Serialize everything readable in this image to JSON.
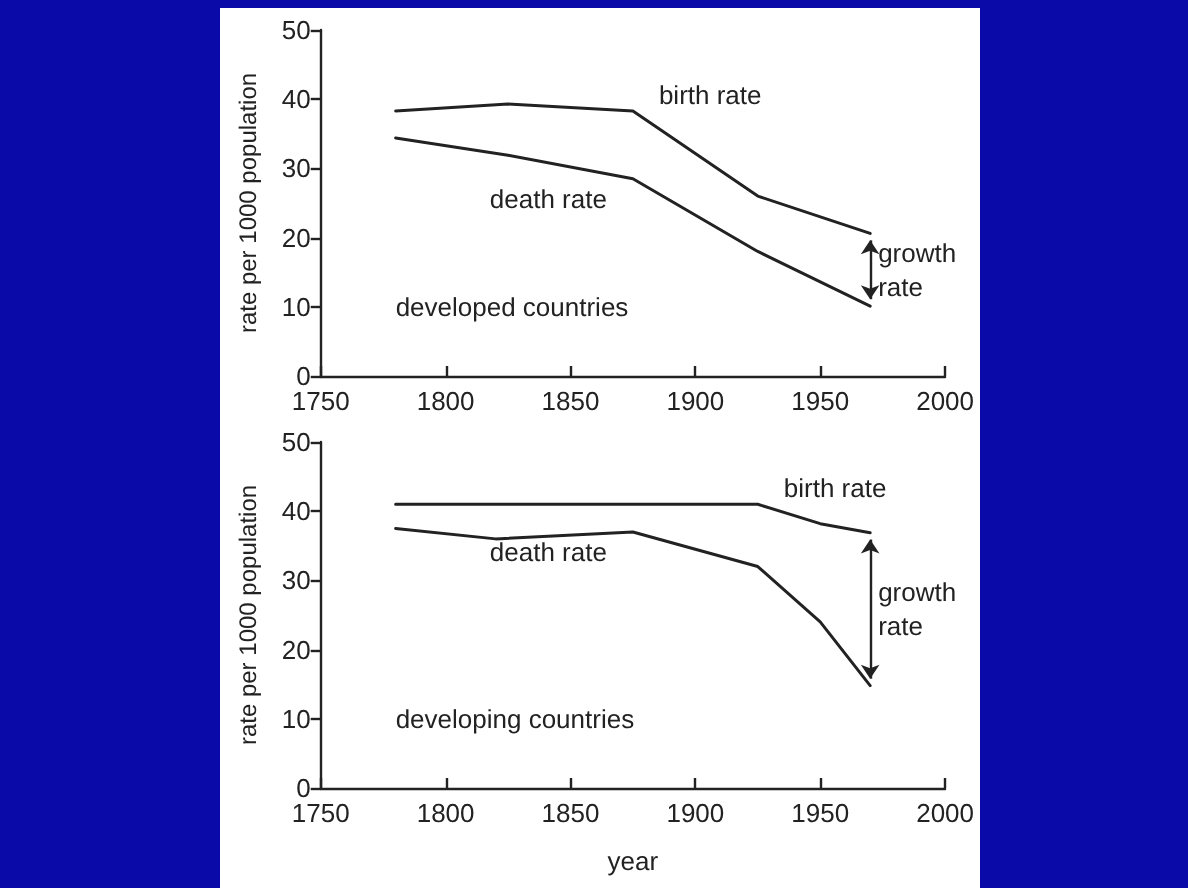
{
  "chart_data": [
    {
      "type": "line",
      "ylabel": "rate per 1000 population",
      "x": [
        1780,
        1825,
        1875,
        1925,
        1970
      ],
      "series": [
        {
          "name": "birth rate",
          "color": "#222222",
          "values": [
            38.3,
            39.3,
            38.3,
            26,
            20.6
          ]
        },
        {
          "name": "death rate",
          "color": "#222222",
          "values": [
            34.4,
            31.9,
            28.5,
            18,
            10.1
          ]
        }
      ],
      "xlim": [
        1750,
        2000
      ],
      "xticks": [
        1750,
        1800,
        1850,
        1900,
        1950,
        2000
      ],
      "ylim": [
        0,
        50
      ],
      "yticks": [
        0,
        10,
        20,
        30,
        40,
        50
      ],
      "annotations": [
        "developed countries",
        "growth rate"
      ],
      "grid": false,
      "legend": false,
      "marker": "none"
    },
    {
      "type": "line",
      "ylabel": "rate per 1000 population",
      "xlabel": "year",
      "x": [
        1780,
        1820,
        1875,
        1925,
        1950,
        1970
      ],
      "series": [
        {
          "name": "birth rate",
          "color": "#222222",
          "values": [
            41,
            41,
            41,
            41,
            38.2,
            36.9
          ]
        },
        {
          "name": "death rate",
          "color": "#222222",
          "values": [
            37.5,
            36,
            37,
            32,
            24,
            14.8
          ]
        }
      ],
      "xlim": [
        1750,
        2000
      ],
      "xticks": [
        1750,
        1800,
        1850,
        1900,
        1950,
        2000
      ],
      "ylim": [
        0,
        50
      ],
      "yticks": [
        0,
        10,
        20,
        30,
        40,
        50
      ],
      "annotations": [
        "developing countries",
        "growth rate"
      ],
      "grid": false,
      "legend": false,
      "marker": "none"
    }
  ]
}
